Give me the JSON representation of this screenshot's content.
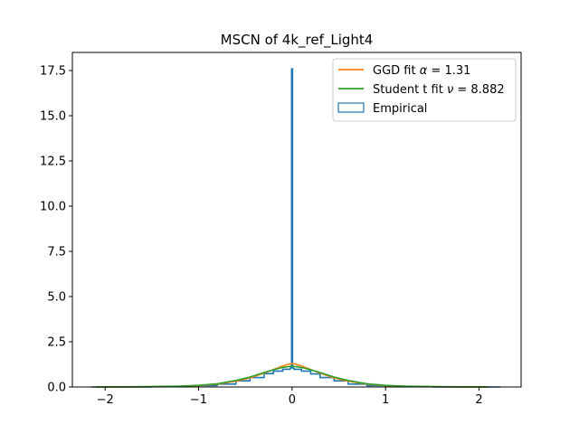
{
  "chart_data": {
    "type": "line",
    "title": "MSCN of 4k_ref_Light4",
    "xlabel": "",
    "ylabel": "",
    "xlim": [
      -2.35,
      2.45
    ],
    "ylim": [
      0,
      18.5
    ],
    "x_ticks": [
      -2,
      -1,
      0,
      1,
      2
    ],
    "x_tick_labels": [
      "−2",
      "−1",
      "0",
      "1",
      "2"
    ],
    "y_ticks": [
      0.0,
      2.5,
      5.0,
      7.5,
      10.0,
      12.5,
      15.0,
      17.5
    ],
    "y_tick_labels": [
      "0.0",
      "2.5",
      "5.0",
      "7.5",
      "10.0",
      "12.5",
      "15.0",
      "17.5"
    ],
    "grid": false,
    "legend_position": "top-right",
    "series": [
      {
        "name": "GGD fit α = 1.31",
        "name_prefix": "GGD fit ",
        "name_symbol": "α",
        "name_suffix": " = 1.31",
        "color": "#ff7f0e",
        "kind": "line",
        "x": [
          -2.1,
          -1.8,
          -1.5,
          -1.2,
          -1.0,
          -0.8,
          -0.6,
          -0.45,
          -0.3,
          -0.2,
          -0.1,
          -0.05,
          0.0,
          0.05,
          0.1,
          0.2,
          0.3,
          0.45,
          0.6,
          0.8,
          1.0,
          1.2,
          1.5,
          1.8,
          2.1
        ],
        "y": [
          0.002,
          0.005,
          0.015,
          0.04,
          0.08,
          0.16,
          0.32,
          0.5,
          0.76,
          0.96,
          1.16,
          1.24,
          1.3,
          1.24,
          1.16,
          0.96,
          0.76,
          0.5,
          0.32,
          0.16,
          0.08,
          0.04,
          0.015,
          0.005,
          0.002
        ]
      },
      {
        "name": "Student t fit ν = 8.882",
        "name_prefix": "Student t fit ",
        "name_symbol": "ν",
        "name_suffix": " = 8.882",
        "color": "#2ca02c",
        "kind": "line",
        "x": [
          -2.1,
          -1.8,
          -1.5,
          -1.2,
          -1.0,
          -0.8,
          -0.6,
          -0.45,
          -0.3,
          -0.2,
          -0.1,
          0.0,
          0.1,
          0.2,
          0.3,
          0.45,
          0.6,
          0.8,
          1.0,
          1.2,
          1.5,
          1.8,
          2.1
        ],
        "y": [
          0.005,
          0.01,
          0.02,
          0.045,
          0.09,
          0.18,
          0.36,
          0.55,
          0.8,
          0.95,
          1.08,
          1.15,
          1.08,
          0.95,
          0.8,
          0.55,
          0.36,
          0.18,
          0.09,
          0.045,
          0.02,
          0.01,
          0.005
        ]
      },
      {
        "name": "Empirical",
        "color": "#1f77b4",
        "kind": "step",
        "x": [
          -2.15,
          -1.8,
          -1.5,
          -1.2,
          -1.0,
          -0.8,
          -0.6,
          -0.45,
          -0.3,
          -0.2,
          -0.1,
          -0.02,
          -0.005,
          0.005,
          0.02,
          0.1,
          0.2,
          0.3,
          0.45,
          0.6,
          0.8,
          1.0,
          1.2,
          1.5,
          1.8,
          2.23
        ],
        "y": [
          0.0,
          0.004,
          0.012,
          0.035,
          0.08,
          0.16,
          0.34,
          0.52,
          0.74,
          0.88,
          0.98,
          1.05,
          17.6,
          1.05,
          0.98,
          0.88,
          0.72,
          0.52,
          0.34,
          0.16,
          0.08,
          0.035,
          0.012,
          0.004,
          0.0,
          0.0
        ]
      }
    ]
  }
}
